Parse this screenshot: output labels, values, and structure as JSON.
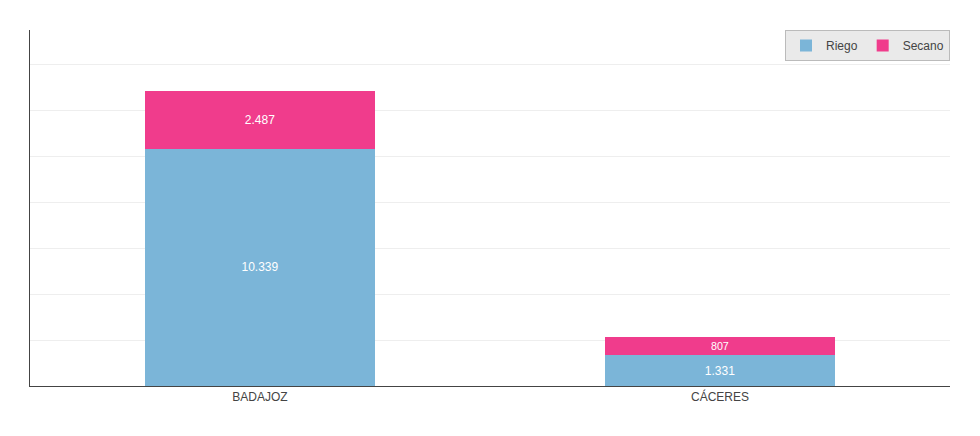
{
  "chart_data": {
    "type": "bar",
    "stacked": true,
    "categories": [
      "BADAJOZ",
      "CÁCERES"
    ],
    "series": [
      {
        "name": "Riego",
        "color": "#7bb5d8",
        "values": [
          10339,
          1331
        ],
        "value_labels": [
          "10.339",
          "1.331"
        ]
      },
      {
        "name": "Secano",
        "color": "#f03c8c",
        "values": [
          2487,
          807
        ],
        "value_labels": [
          "2.487",
          "807"
        ]
      }
    ],
    "ylim": [
      0,
      15500
    ],
    "yticks": [
      0,
      2000,
      4000,
      6000,
      8000,
      10000,
      12000,
      14000
    ],
    "grid": true,
    "legend": "upper right",
    "data_labels": true,
    "tick_labels": "x"
  }
}
